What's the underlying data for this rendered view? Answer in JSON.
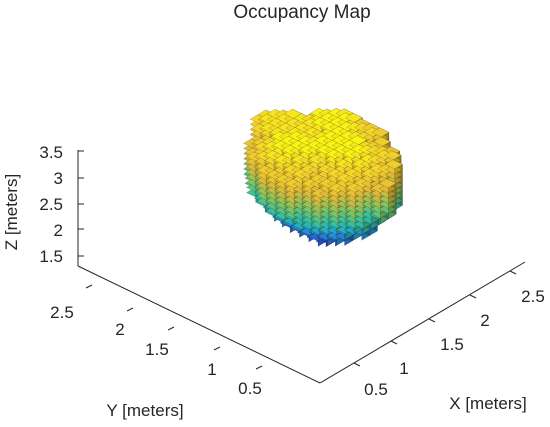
{
  "chart_data": {
    "type": "voxel-occupancy-3d",
    "title": "Occupancy Map",
    "xlabel": "X [meters]",
    "ylabel": "Y [meters]",
    "zlabel": "Z [meters]",
    "x_ticks": [
      "0.5",
      "1",
      "1.5",
      "2",
      "2.5"
    ],
    "y_ticks": [
      "0.5",
      "1",
      "1.5",
      "2",
      "2.5"
    ],
    "z_ticks": [
      "1.5",
      "2",
      "2.5",
      "3",
      "3.5"
    ],
    "xlim": [
      0.15,
      2.75
    ],
    "ylim": [
      0.15,
      2.75
    ],
    "zlim": [
      1.3,
      3.55
    ],
    "colormap": [
      "#3e26a8",
      "#2a69e5",
      "#22a4cf",
      "#32bfa2",
      "#8cc35b",
      "#e3b938",
      "#f4d52b",
      "#f9fb0e"
    ],
    "voxels": {
      "resolution_m": 0.1,
      "x_range": [
        1.35,
        2.45
      ],
      "y_range": [
        0.95,
        2.25
      ],
      "z_range": [
        1.35,
        3.25
      ],
      "color_by": "z"
    }
  }
}
